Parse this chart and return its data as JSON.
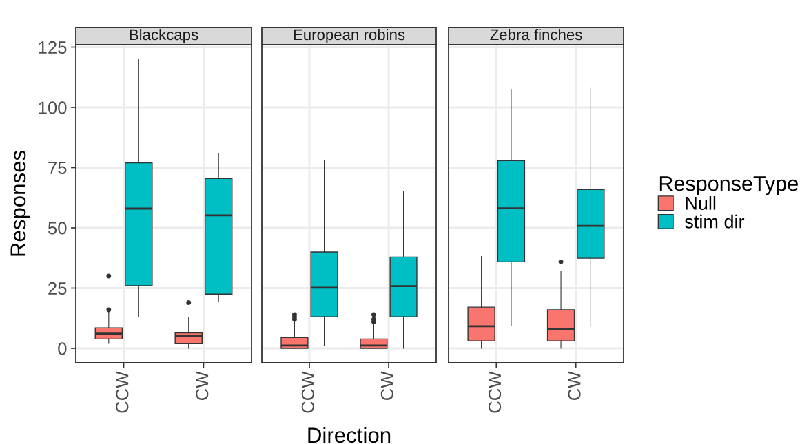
{
  "chart_data": [
    {
      "type": "box",
      "title": "Blackcaps",
      "ylabel": "Responses",
      "categories": [
        "CCW",
        "CW"
      ],
      "series": [
        {
          "name": "Null",
          "color": "#f8766d",
          "boxes": [
            {
              "low": 2,
              "q1": 3.9,
              "median": 6.1,
              "q3": 8.5,
              "high": 15,
              "outliers": [
                16,
                30
              ]
            },
            {
              "low": 0,
              "q1": 1.9,
              "median": 5.2,
              "q3": 6.4,
              "high": 13,
              "outliers": [
                19
              ]
            }
          ]
        },
        {
          "name": "stim dir",
          "color": "#00bfc4",
          "boxes": [
            {
              "low": 13.3,
              "q1": 26,
              "median": 58,
              "q3": 77,
              "high": 120
            },
            {
              "low": 19.3,
              "q1": 22.5,
              "median": 55.2,
              "q3": 70.5,
              "high": 81
            }
          ]
        }
      ],
      "ylim": [
        -6,
        126
      ],
      "yticks": [
        0,
        25,
        50,
        75,
        100,
        125
      ],
      "grid": true,
      "legend": "right",
      "legend_title": "ResponseType"
    },
    {
      "type": "box",
      "title": "European robins",
      "xlabel": "Direction",
      "categories": [
        "CCW",
        "CW"
      ],
      "series": [
        {
          "color": "#f8766d",
          "boxes": [
            {
              "low": 0,
              "q1": 0,
              "median": 1.2,
              "q3": 4.5,
              "high": 11,
              "outliers": [
                12,
                13,
                14
              ]
            },
            {
              "low": 0,
              "q1": 0,
              "median": 1.2,
              "q3": 3.9,
              "high": 10,
              "outliers": [
                11,
                12,
                14
              ]
            }
          ]
        },
        {
          "color": "#00bfc4",
          "boxes": [
            {
              "low": 1.2,
              "q1": 13.1,
              "median": 25.2,
              "q3": 40,
              "high": 78
            },
            {
              "low": 0,
              "q1": 13.1,
              "median": 25.8,
              "q3": 37.9,
              "high": 65.3
            }
          ]
        }
      ],
      "ylim": [
        -6,
        126
      ],
      "yticks": [
        0,
        25,
        50,
        75,
        100,
        125
      ],
      "grid": true,
      "tick_labels": "x"
    },
    {
      "type": "box",
      "title": "Zebra finches",
      "categories": [
        "CCW",
        "CW"
      ],
      "series": [
        {
          "color": "#f8766d",
          "boxes": [
            {
              "low": 0,
              "q1": 3.1,
              "median": 9.2,
              "q3": 17.1,
              "high": 38.1
            },
            {
              "low": 0,
              "q1": 3.1,
              "median": 8.1,
              "q3": 16,
              "high": 32,
              "outliers": [
                35.9
              ]
            }
          ]
        },
        {
          "color": "#00bfc4",
          "boxes": [
            {
              "low": 9.3,
              "q1": 35.9,
              "median": 58.1,
              "q3": 77.9,
              "high": 107.2
            },
            {
              "low": 9.3,
              "q1": 37.4,
              "median": 50.8,
              "q3": 65.9,
              "high": 108
            }
          ]
        }
      ],
      "ylim": [
        -6,
        126
      ],
      "yticks": [
        0,
        25,
        50,
        75,
        100,
        125
      ],
      "grid": true,
      "tick_labels": "x"
    }
  ]
}
